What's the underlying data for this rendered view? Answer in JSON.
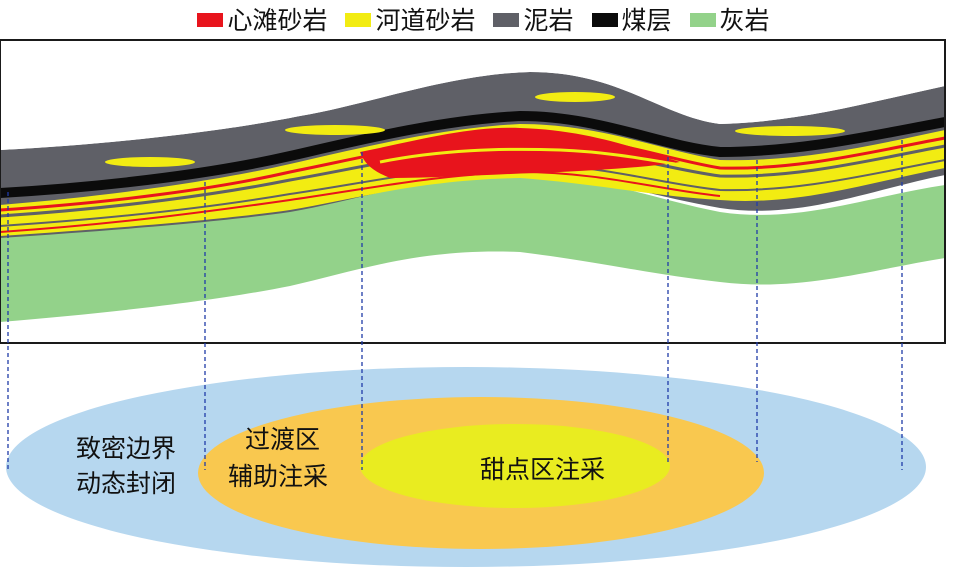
{
  "legend": {
    "items": [
      {
        "label": "心滩砂岩",
        "color": "#e8141c",
        "icon": "red-swatch-icon"
      },
      {
        "label": "河道砂岩",
        "color": "#f2ec12",
        "icon": "yellow-swatch-icon"
      },
      {
        "label": "泥岩",
        "color": "#5f6067",
        "icon": "gray-swatch-icon"
      },
      {
        "label": "煤层",
        "color": "#0b0b0b",
        "icon": "black-swatch-icon"
      },
      {
        "label": "灰岩",
        "color": "#93d28a",
        "icon": "green-swatch-icon"
      }
    ]
  },
  "zones": {
    "outer": {
      "line1": "致密边界",
      "line2": "动态封闭",
      "color": "#b6d7ef"
    },
    "middle": {
      "line1": "过渡区",
      "line2": "辅助注采",
      "color": "#f9c84f"
    },
    "inner": {
      "label": "甜点区注采",
      "color": "#e9ec20"
    }
  },
  "colors": {
    "frame": "#1a1a1a",
    "guide_line": "#1f3ba8"
  }
}
